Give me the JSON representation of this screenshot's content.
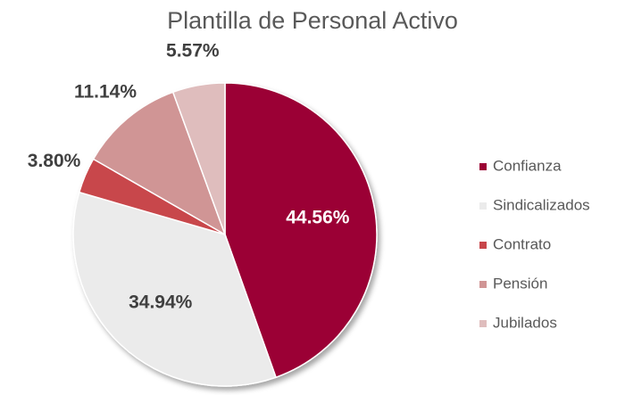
{
  "chart_data": {
    "type": "pie",
    "title": "Plantilla de Personal Activo",
    "categories": [
      "Confianza",
      "Sindicalizados",
      "Contrato",
      "Pensión",
      "Jubilados"
    ],
    "values": [
      44.56,
      34.94,
      3.8,
      11.14,
      5.57
    ],
    "value_labels": [
      "44.56%",
      "34.94%",
      "3.80%",
      "11.14%",
      "5.57%"
    ],
    "colors": [
      "#9b0034",
      "#ebebeb",
      "#c8464b",
      "#d09595",
      "#dfbdbd"
    ],
    "legend": "right"
  }
}
